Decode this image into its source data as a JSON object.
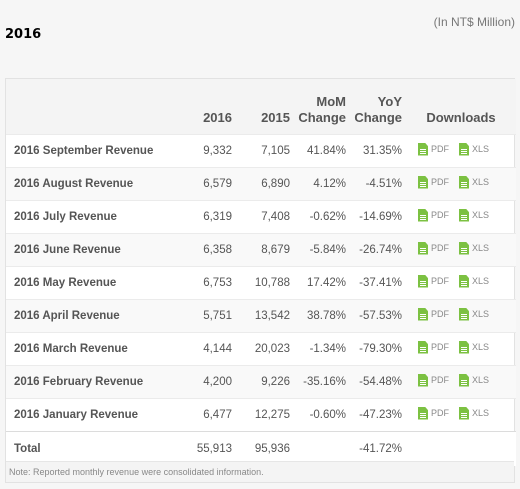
{
  "page": {
    "year_title": "2016",
    "unit_note": "(In NT$ Million)"
  },
  "table": {
    "headers": {
      "col_2016": "2016",
      "col_2015": "2015",
      "mom_line1": "MoM",
      "mom_line2": "Change",
      "yoy_line1": "YoY",
      "yoy_line2": "Change",
      "downloads": "Downloads"
    },
    "pdf_label": "PDF",
    "xls_label": "XLS",
    "rows": [
      {
        "label": "2016 September Revenue",
        "v2016": "9,332",
        "v2015": "7,105",
        "mom": "41.84%",
        "yoy": "31.35%"
      },
      {
        "label": "2016 August Revenue",
        "v2016": "6,579",
        "v2015": "6,890",
        "mom": "4.12%",
        "yoy": "-4.51%"
      },
      {
        "label": "2016 July Revenue",
        "v2016": "6,319",
        "v2015": "7,408",
        "mom": "-0.62%",
        "yoy": "-14.69%"
      },
      {
        "label": "2016 June Revenue",
        "v2016": "6,358",
        "v2015": "8,679",
        "mom": "-5.84%",
        "yoy": "-26.74%"
      },
      {
        "label": "2016 May Revenue",
        "v2016": "6,753",
        "v2015": "10,788",
        "mom": "17.42%",
        "yoy": "-37.41%"
      },
      {
        "label": "2016 April Revenue",
        "v2016": "5,751",
        "v2015": "13,542",
        "mom": "38.78%",
        "yoy": "-57.53%"
      },
      {
        "label": "2016 March Revenue",
        "v2016": "4,144",
        "v2015": "20,023",
        "mom": "-1.34%",
        "yoy": "-79.30%"
      },
      {
        "label": "2016 February Revenue",
        "v2016": "4,200",
        "v2015": "9,226",
        "mom": "-35.16%",
        "yoy": "-54.48%"
      },
      {
        "label": "2016 January Revenue",
        "v2016": "6,477",
        "v2015": "12,275",
        "mom": "-0.60%",
        "yoy": "-47.23%"
      }
    ],
    "total": {
      "label": "Total",
      "v2016": "55,913",
      "v2015": "95,936",
      "mom": "",
      "yoy": "-41.72%"
    },
    "footnote": "Note: Reported monthly revenue were consolidated information."
  },
  "icons": {
    "file": "file-document-icon",
    "file_color": "#7cc142"
  }
}
